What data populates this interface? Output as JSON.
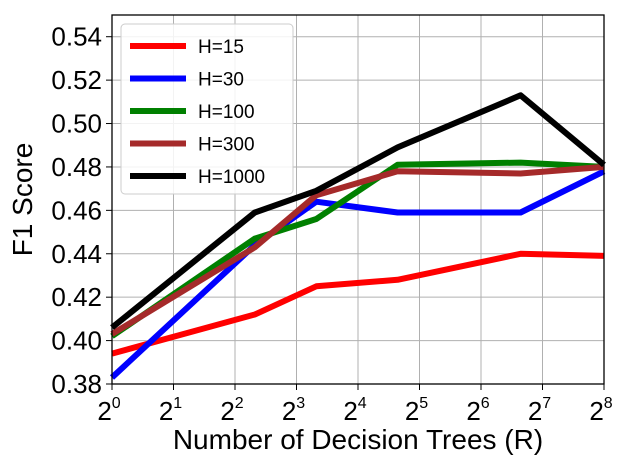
{
  "chart_data": {
    "type": "line",
    "xlabel": "Number of Decision Trees (R)",
    "ylabel": "F1 Score",
    "x_scale": "log2",
    "xlim": [
      1,
      256
    ],
    "ylim": [
      0.38,
      0.55
    ],
    "grid": true,
    "legend_position": "top-left",
    "x_ticks": [
      {
        "base": "2",
        "exp": "0",
        "value": 1
      },
      {
        "base": "2",
        "exp": "1",
        "value": 2
      },
      {
        "base": "2",
        "exp": "2",
        "value": 4
      },
      {
        "base": "2",
        "exp": "3",
        "value": 8
      },
      {
        "base": "2",
        "exp": "4",
        "value": 16
      },
      {
        "base": "2",
        "exp": "5",
        "value": 32
      },
      {
        "base": "2",
        "exp": "6",
        "value": 64
      },
      {
        "base": "2",
        "exp": "7",
        "value": 128
      },
      {
        "base": "2",
        "exp": "8",
        "value": 256
      }
    ],
    "y_ticks": [
      "0.38",
      "0.40",
      "0.42",
      "0.44",
      "0.46",
      "0.48",
      "0.50",
      "0.52",
      "0.54"
    ],
    "y_tick_values": [
      0.38,
      0.4,
      0.42,
      0.44,
      0.46,
      0.48,
      0.5,
      0.52,
      0.54
    ],
    "x": [
      1,
      5,
      10,
      25,
      100,
      256
    ],
    "series": [
      {
        "name": "H=15",
        "color": "#ff0000",
        "values": [
          0.394,
          0.412,
          0.425,
          0.428,
          0.44,
          0.439
        ]
      },
      {
        "name": "H=30",
        "color": "#0000ff",
        "values": [
          0.383,
          0.444,
          0.464,
          0.459,
          0.459,
          0.478
        ]
      },
      {
        "name": "H=100",
        "color": "#008000",
        "values": [
          0.402,
          0.447,
          0.456,
          0.481,
          0.482,
          0.48
        ]
      },
      {
        "name": "H=300",
        "color": "#a52a2a",
        "values": [
          0.403,
          0.443,
          0.467,
          0.478,
          0.477,
          0.48
        ]
      },
      {
        "name": "H=1000",
        "color": "#000000",
        "values": [
          0.406,
          0.459,
          0.469,
          0.489,
          0.513,
          0.481
        ]
      }
    ]
  }
}
